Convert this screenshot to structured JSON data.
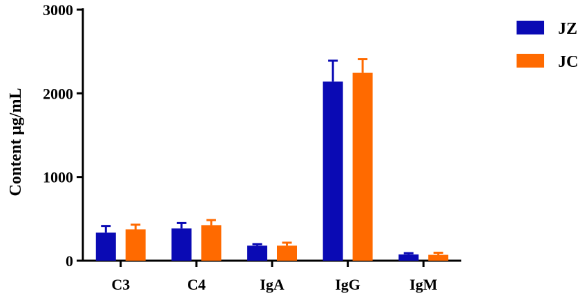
{
  "chart_data": {
    "type": "bar",
    "title": "",
    "xlabel": "",
    "ylabel": "Content μg/mL",
    "ylim": [
      0,
      3000
    ],
    "yticks": [
      0,
      1000,
      2000,
      3000
    ],
    "categories": [
      "C3",
      "C4",
      "IgA",
      "IgG",
      "IgM"
    ],
    "series": [
      {
        "name": "JZ",
        "color": "#0a0ab4",
        "values": [
          335,
          385,
          180,
          2140,
          75
        ],
        "errors": [
          80,
          65,
          18,
          250,
          15
        ]
      },
      {
        "name": "JC",
        "color": "#ff6a00",
        "values": [
          375,
          425,
          180,
          2245,
          70
        ],
        "errors": [
          55,
          60,
          35,
          165,
          25
        ]
      }
    ],
    "grid": false,
    "legend_position": "top-right"
  }
}
